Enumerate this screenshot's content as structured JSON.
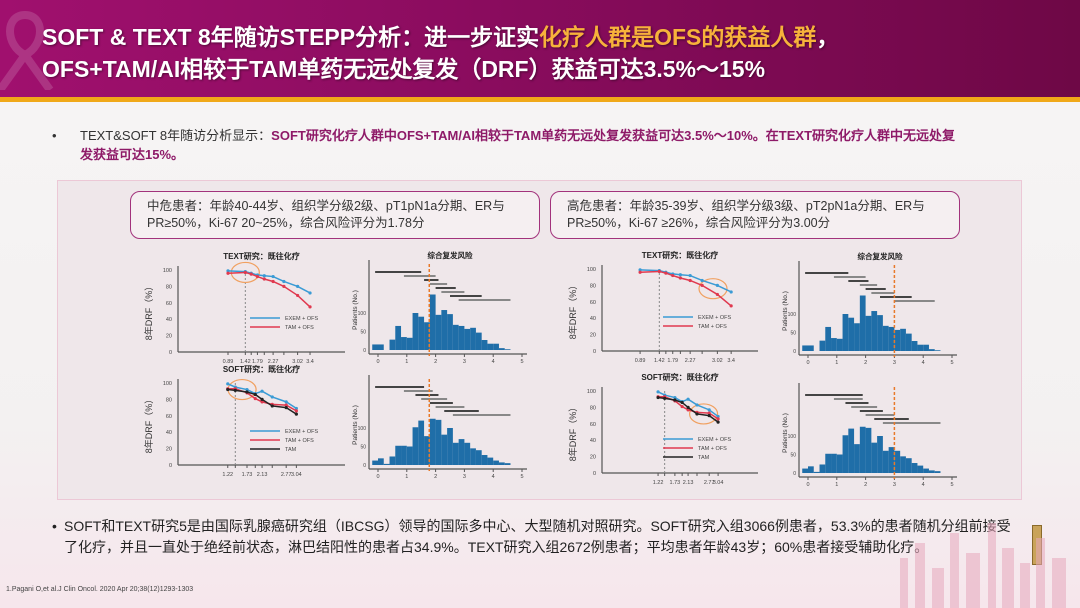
{
  "header": {
    "title_line1": "SOFT & TEXT 8年随访STEPP分析：进一步证实",
    "title_line1_highlight": "化疗人群是OFS的获益人群",
    "title_line1_end": "，",
    "title_line2": "OFS+TAM/AI相较于TAM单药无远处复发（DRF）获益可达3.5%～15%"
  },
  "intro": {
    "bullet": "•",
    "lead": "TEXT&SOFT 8年随访分析显示：",
    "highlight": "SOFT研究化疗人群中OFS+TAM/AI相较于TAM单药无远处复发获益可达3.5%～10%。在TEXT研究化疗人群中无远处复发获益可达15%。"
  },
  "callouts": [
    "中危患者：年龄40-44岁、组织学分级2级、pT1pN1a分期、ER与PR≥50%，Ki-67 20~25%，综合风险评分为1.78分",
    "高危患者：年龄35-39岁、组织学分级3级、pT2pN1a分期、ER与PR≥50%，Ki-67 ≥26%，综合风险评分为3.00分"
  ],
  "colors": {
    "exem_ofs": "#3a9bd5",
    "tam_ofs": "#e0394f",
    "tam": "#222222",
    "histogram": "#1f6ea8",
    "cutoff": "#e8792a",
    "accent": "#8e1a68",
    "highlight": "#f7b23b"
  },
  "chart_data": [
    {
      "type": "line",
      "title": "TEXT研究：既往化疗",
      "ylabel": "8年DRF（%）",
      "xlim": [
        -0.64,
        4.47
      ],
      "ylim": [
        0,
        100
      ],
      "yticks": [
        0,
        20,
        40,
        60,
        80,
        100
      ],
      "xtick_labels": [
        0.89,
        1.42,
        1.79,
        2.27,
        3.02,
        3.4
      ],
      "xticks_minor": [
        0.89,
        1.42,
        1.6,
        1.79,
        2.0,
        2.27,
        2.6,
        3.02,
        3.4
      ],
      "ref_x": 1.42,
      "highlight": [
        1.42,
        97
      ],
      "series": [
        {
          "name": "EXEM + OFS",
          "x": [
            0.89,
            1.42,
            1.6,
            1.79,
            2.0,
            2.27,
            2.6,
            3.02,
            3.4
          ],
          "y": [
            99,
            98,
            96,
            94,
            93,
            92,
            86,
            80,
            72
          ]
        },
        {
          "name": "TAM + OFS",
          "x": [
            0.89,
            1.42,
            1.6,
            1.79,
            2.0,
            2.27,
            2.6,
            3.02,
            3.4
          ],
          "y": [
            96,
            97,
            95,
            92,
            89,
            86,
            80,
            69,
            55
          ]
        }
      ]
    },
    {
      "type": "histogram",
      "title": "综合复发风险",
      "ylabel": "Patients (No.)",
      "xlim": [
        0,
        5
      ],
      "xticks": [
        0,
        1,
        2,
        3,
        4,
        5
      ],
      "yticks": [
        0,
        50,
        100
      ],
      "bin_start": -0.2,
      "bin_width": 0.2,
      "cutoff": 1.78,
      "counts": [
        15,
        15,
        0,
        28,
        65,
        35,
        33,
        100,
        90,
        75,
        150,
        95,
        108,
        97,
        68,
        65,
        57,
        60,
        47,
        27,
        17,
        17,
        5,
        2
      ],
      "stepp_windows": [
        [
          -0.1,
          1.5
        ],
        [
          0.9,
          2.0
        ],
        [
          1.6,
          2.1
        ],
        [
          1.8,
          2.4
        ],
        [
          2.0,
          2.7
        ],
        [
          2.2,
          3.0
        ],
        [
          2.5,
          3.6
        ],
        [
          2.8,
          4.6
        ]
      ]
    },
    {
      "type": "line",
      "title": "SOFT研究：既往化疗",
      "ylabel": "8年DRF（%）",
      "xlim": [
        -0.1,
        4.33
      ],
      "ylim": [
        0,
        100
      ],
      "yticks": [
        0,
        20,
        40,
        60,
        80,
        100
      ],
      "xtick_labels": [
        1.22,
        1.73,
        2.13,
        2.77,
        3.04
      ],
      "xticks_minor": [
        1.22,
        1.42,
        1.73,
        1.95,
        2.13,
        2.4,
        2.77,
        3.04
      ],
      "ref_x": 1.42,
      "highlight": [
        1.6,
        92
      ],
      "series": [
        {
          "name": "EXEM + OFS",
          "x": [
            1.22,
            1.42,
            1.73,
            1.95,
            2.13,
            2.4,
            2.77,
            3.04
          ],
          "y": [
            99,
            95,
            92,
            87,
            90,
            83,
            77,
            69
          ]
        },
        {
          "name": "TAM + OFS",
          "x": [
            1.22,
            1.42,
            1.73,
            1.95,
            2.13,
            2.4,
            2.77,
            3.04
          ],
          "y": [
            93,
            93,
            88,
            81,
            77,
            74,
            73,
            66
          ]
        },
        {
          "name": "TAM",
          "x": [
            1.22,
            1.42,
            1.73,
            1.95,
            2.13,
            2.4,
            2.77,
            3.04
          ],
          "y": [
            92,
            91,
            89,
            86,
            80,
            72,
            70,
            62
          ]
        }
      ]
    },
    {
      "type": "histogram",
      "title": "",
      "ylabel": "Patients (No.)",
      "xlim": [
        0,
        5
      ],
      "xticks": [
        0,
        1,
        2,
        3,
        4,
        5
      ],
      "yticks": [
        0,
        50,
        100
      ],
      "bin_start": -0.2,
      "bin_width": 0.2,
      "cutoff": 1.78,
      "counts": [
        12,
        18,
        3,
        23,
        52,
        52,
        50,
        102,
        120,
        78,
        125,
        122,
        82,
        100,
        60,
        70,
        60,
        45,
        40,
        27,
        20,
        12,
        7,
        5
      ],
      "stepp_windows": [
        [
          -0.1,
          1.6
        ],
        [
          0.9,
          1.9
        ],
        [
          1.3,
          2.1
        ],
        [
          1.5,
          2.4
        ],
        [
          1.8,
          2.6
        ],
        [
          2.0,
          3.0
        ],
        [
          2.3,
          3.5
        ],
        [
          2.6,
          4.6
        ]
      ]
    },
    {
      "type": "line",
      "title": "TEXT研究：既往化疗",
      "ylabel": "8年DRF（%）",
      "xlim": [
        -0.16,
        4.14
      ],
      "ylim": [
        0,
        100
      ],
      "yticks": [
        0,
        20,
        40,
        60,
        80,
        100
      ],
      "xtick_labels": [
        0.89,
        1.42,
        1.79,
        2.27,
        3.02,
        3.4
      ],
      "xticks_minor": [
        0.89,
        1.42,
        1.6,
        1.79,
        2.0,
        2.27,
        2.6,
        3.02,
        3.4
      ],
      "ref_x": 1.42,
      "highlight": [
        2.9,
        76
      ],
      "series": [
        {
          "name": "EXEM + OFS",
          "x": [
            0.89,
            1.42,
            1.6,
            1.79,
            2.0,
            2.27,
            2.6,
            3.02,
            3.4
          ],
          "y": [
            99,
            98,
            96,
            94,
            93,
            92,
            86,
            80,
            72
          ]
        },
        {
          "name": "TAM + OFS",
          "x": [
            0.89,
            1.42,
            1.6,
            1.79,
            2.0,
            2.27,
            2.6,
            3.02,
            3.4
          ],
          "y": [
            96,
            97,
            95,
            92,
            89,
            86,
            80,
            69,
            55
          ]
        }
      ]
    },
    {
      "type": "histogram",
      "title": "综合复发风险",
      "ylabel": "Patients (No.)",
      "xlim": [
        0,
        5
      ],
      "xticks": [
        0,
        1,
        2,
        3,
        4,
        5
      ],
      "yticks": [
        0,
        50,
        100
      ],
      "bin_start": -0.2,
      "bin_width": 0.2,
      "cutoff": 3.0,
      "counts": [
        15,
        15,
        0,
        28,
        65,
        35,
        33,
        100,
        90,
        75,
        150,
        95,
        108,
        97,
        68,
        65,
        57,
        60,
        47,
        27,
        17,
        17,
        5,
        2
      ],
      "stepp_windows": [
        [
          -0.1,
          1.4
        ],
        [
          0.9,
          2.0
        ],
        [
          1.4,
          2.1
        ],
        [
          1.8,
          2.4
        ],
        [
          2.0,
          2.7
        ],
        [
          2.2,
          3.0
        ],
        [
          2.5,
          3.6
        ],
        [
          3.0,
          4.4
        ]
      ]
    },
    {
      "type": "line",
      "title": "SOFT研究：既往化疗",
      "ylabel": "8年DRF（%）",
      "xlim": [
        -0.48,
        4.25
      ],
      "ylim": [
        0,
        100
      ],
      "yticks": [
        0,
        20,
        40,
        60,
        80,
        100
      ],
      "xtick_labels": [
        1.22,
        1.73,
        2.13,
        2.77,
        3.04
      ],
      "xticks_minor": [
        1.22,
        1.42,
        1.73,
        1.95,
        2.13,
        2.4,
        2.77,
        3.04
      ],
      "ref_x": 1.42,
      "highlight": [
        2.6,
        72
      ],
      "series": [
        {
          "name": "EXEM + OFS",
          "x": [
            1.22,
            1.42,
            1.73,
            1.95,
            2.13,
            2.4,
            2.77,
            3.04
          ],
          "y": [
            99,
            95,
            92,
            87,
            90,
            83,
            77,
            69
          ]
        },
        {
          "name": "TAM + OFS",
          "x": [
            1.22,
            1.42,
            1.73,
            1.95,
            2.13,
            2.4,
            2.77,
            3.04
          ],
          "y": [
            93,
            93,
            88,
            81,
            77,
            74,
            73,
            66
          ]
        },
        {
          "name": "TAM",
          "x": [
            1.22,
            1.42,
            1.73,
            1.95,
            2.13,
            2.4,
            2.77,
            3.04
          ],
          "y": [
            92,
            91,
            89,
            86,
            80,
            72,
            70,
            62
          ]
        }
      ]
    },
    {
      "type": "histogram",
      "title": "",
      "ylabel": "Patients (No.)",
      "xlim": [
        0,
        5
      ],
      "xticks": [
        0,
        1,
        2,
        3,
        4,
        5
      ],
      "yticks": [
        0,
        50,
        100
      ],
      "bin_start": -0.2,
      "bin_width": 0.2,
      "cutoff": 3.0,
      "counts": [
        12,
        18,
        3,
        23,
        52,
        52,
        50,
        102,
        120,
        78,
        125,
        122,
        82,
        100,
        60,
        70,
        60,
        45,
        40,
        27,
        20,
        12,
        7,
        5
      ],
      "stepp_windows": [
        [
          -0.1,
          1.9
        ],
        [
          0.9,
          1.9
        ],
        [
          1.3,
          2.1
        ],
        [
          1.5,
          2.4
        ],
        [
          1.8,
          2.6
        ],
        [
          2.0,
          3.0
        ],
        [
          2.3,
          3.5
        ],
        [
          2.6,
          4.6
        ]
      ]
    }
  ],
  "footer": {
    "bullet": "•",
    "text": "SOFT和TEXT研究5是由国际乳腺癌研究组（IBCSG）领导的国际多中心、大型随机对照研究。SOFT研究入组3066例患者，53.3%的患者随机分组前接受了化疗，并且一直处于绝经前状态，淋巴结阳性的患者占34.9%。TEXT研究入组2672例患者；平均患者年龄43岁；60%患者接受辅助化疗。",
    "reference": "1.Pagani O,et al.J Clin Oncol. 2020 Apr 20;38(12)1293-1303"
  }
}
